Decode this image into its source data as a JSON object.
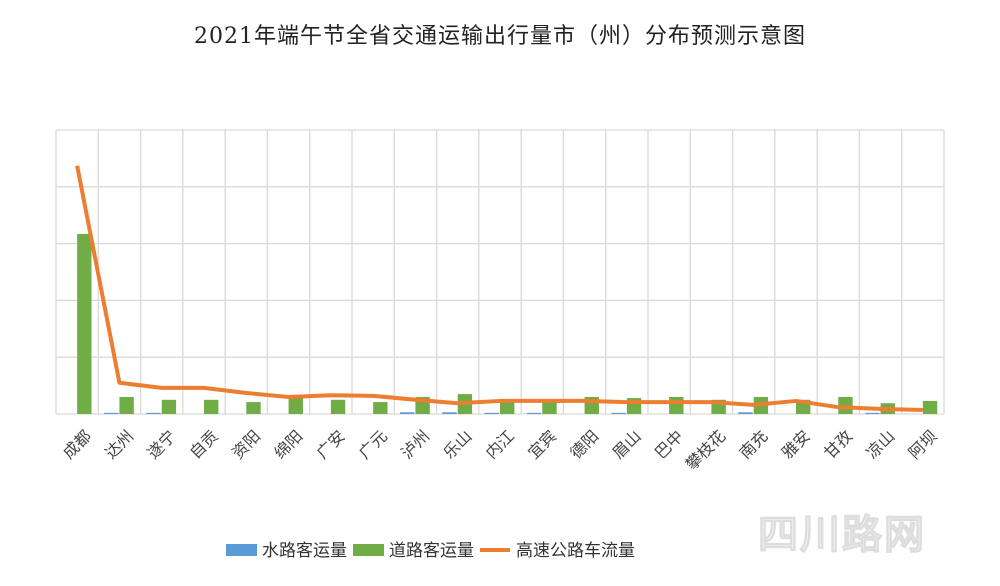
{
  "chart_data": {
    "type": "bar",
    "title": "2021年端午节全省交通运输出行量市（州）分布预测示意图",
    "xlabel": "",
    "ylabel": "",
    "ylim": [
      0,
      5
    ],
    "grid": true,
    "legend_position": "bottom",
    "categories": [
      "成都",
      "达州",
      "遂宁",
      "自贡",
      "资阳",
      "绵阳",
      "广安",
      "广元",
      "泸州",
      "乐山",
      "内江",
      "宜宾",
      "德阳",
      "眉山",
      "巴中",
      "攀枝花",
      "南充",
      "雅安",
      "甘孜",
      "凉山",
      "阿坝"
    ],
    "series": [
      {
        "name": "水路客运量",
        "type": "bar",
        "color": "#5b9bd5",
        "values": [
          0,
          0.02,
          0.02,
          0,
          0,
          0,
          0,
          0,
          0.03,
          0.03,
          0.02,
          0.02,
          0,
          0.02,
          0,
          0,
          0.03,
          0,
          0,
          0.02,
          0
        ]
      },
      {
        "name": "道路客运量",
        "type": "bar",
        "color": "#70ad47",
        "values": [
          3.17,
          0.3,
          0.25,
          0.25,
          0.21,
          0.3,
          0.25,
          0.21,
          0.3,
          0.35,
          0.25,
          0.25,
          0.3,
          0.28,
          0.3,
          0.25,
          0.3,
          0.25,
          0.3,
          0.19,
          0.23
        ]
      },
      {
        "name": "高速公路车流量",
        "type": "line",
        "color": "#ed7d31",
        "values": [
          4.37,
          0.55,
          0.46,
          0.46,
          0.37,
          0.3,
          0.33,
          0.32,
          0.25,
          0.19,
          0.23,
          0.23,
          0.23,
          0.21,
          0.21,
          0.21,
          0.16,
          0.23,
          0.12,
          0.09,
          0.07
        ]
      }
    ]
  },
  "watermark": "四川路网"
}
